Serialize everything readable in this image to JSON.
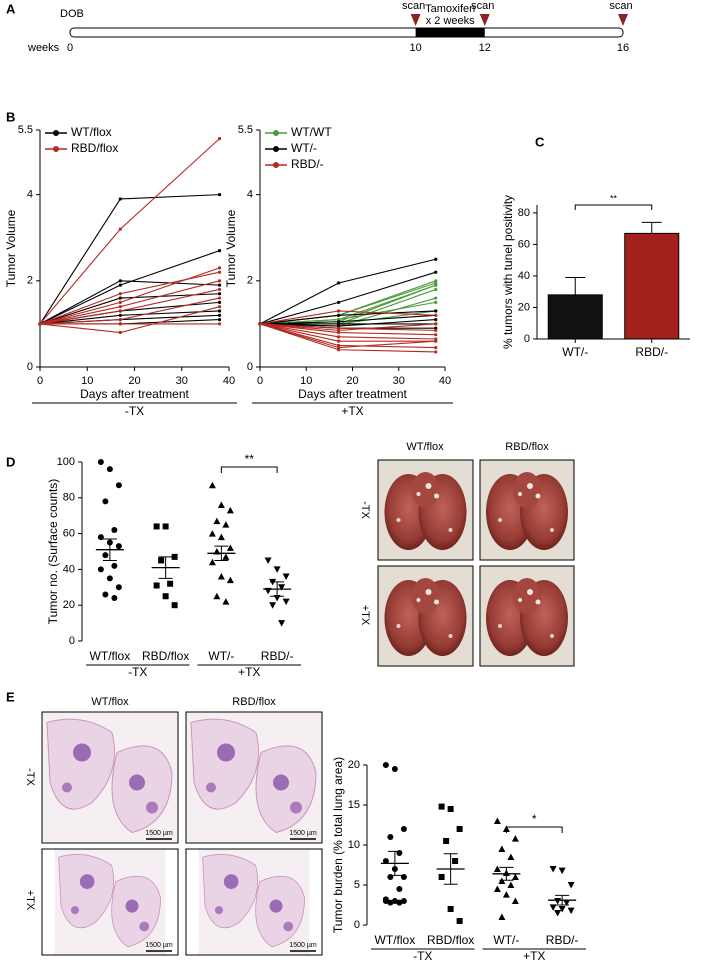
{
  "panel_labels": [
    "A",
    "B",
    "C",
    "D",
    "E"
  ],
  "timeline": {
    "start_label": "DOB",
    "axis_label": "weeks",
    "xlim": [
      0,
      16
    ],
    "xticks": [
      0,
      10,
      12,
      16
    ],
    "scans": [
      {
        "week": 10,
        "label": "scan"
      },
      {
        "week": 12,
        "label": "scan"
      },
      {
        "week": 16,
        "label": "scan"
      }
    ],
    "treatment": {
      "label": "Tamoxifen",
      "sublabel": "x 2 weeks",
      "weeks": [
        10,
        12
      ]
    }
  },
  "chart_data": [
    {
      "type": "line",
      "ylabel": "Tumor Volume",
      "xlabel": "Days after treatment",
      "group_label": "-TX",
      "x": [
        0,
        17,
        38
      ],
      "xlim": [
        0,
        40
      ],
      "xticks": [
        0,
        10,
        20,
        30,
        40
      ],
      "ylim": [
        0,
        5.5
      ],
      "yticks": [
        0,
        2,
        4,
        5.5
      ],
      "series": [
        {
          "name": "WT/flox",
          "color": "#000000",
          "values": [
            [
              1,
              3.9,
              4.0
            ],
            [
              1,
              2.0,
              1.9
            ],
            [
              1,
              1.9,
              2.7
            ],
            [
              1,
              1.6,
              1.7
            ],
            [
              1,
              1.3,
              1.5
            ],
            [
              1,
              1.2,
              1.3
            ],
            [
              1,
              1.1,
              1.2
            ],
            [
              1,
              1.0,
              1.1
            ]
          ]
        },
        {
          "name": "RBD/flox",
          "color": "#b52a22",
          "values": [
            [
              1,
              3.2,
              5.3
            ],
            [
              1,
              1.5,
              2.3
            ],
            [
              1,
              1.7,
              2.2
            ],
            [
              1,
              1.4,
              2.0
            ],
            [
              1,
              1.1,
              1.6
            ],
            [
              1,
              0.8,
              1.4
            ],
            [
              1,
              1.0,
              1.0
            ],
            [
              1,
              1.3,
              1.8
            ]
          ]
        }
      ]
    },
    {
      "type": "line",
      "ylabel": "Tumor Volume",
      "xlabel": "Days after treatment",
      "group_label": "+TX",
      "x": [
        0,
        17,
        38
      ],
      "xlim": [
        0,
        40
      ],
      "xticks": [
        0,
        10,
        20,
        30,
        40
      ],
      "ylim": [
        0,
        5.5
      ],
      "yticks": [
        0,
        2,
        4,
        5.5
      ],
      "series": [
        {
          "name": "WT/WT",
          "color": "#4f9a3c",
          "values": [
            [
              1,
              1.2,
              2.0
            ],
            [
              1,
              1.1,
              1.9
            ],
            [
              1,
              1.0,
              1.8
            ],
            [
              1,
              1.2,
              1.95
            ],
            [
              1,
              1.1,
              1.5
            ],
            [
              1,
              1.0,
              1.3
            ],
            [
              1,
              0.95,
              1.6
            ],
            [
              1,
              1.05,
              1.9
            ]
          ]
        },
        {
          "name": "WT/-",
          "color": "#000000",
          "values": [
            [
              1,
              1.95,
              2.5
            ],
            [
              1,
              1.5,
              2.2
            ],
            [
              1,
              1.2,
              1.3
            ],
            [
              1,
              1.05,
              1.2
            ],
            [
              1,
              1.0,
              1.0
            ],
            [
              1,
              0.95,
              1.1
            ],
            [
              1,
              0.9,
              0.9
            ]
          ]
        },
        {
          "name": "RBD/-",
          "color": "#b52a22",
          "values": [
            [
              1,
              1.3,
              1.2
            ],
            [
              1,
              0.9,
              0.85
            ],
            [
              1,
              0.8,
              0.75
            ],
            [
              1,
              0.7,
              0.65
            ],
            [
              1,
              0.6,
              0.6
            ],
            [
              1,
              0.5,
              0.45
            ],
            [
              1,
              0.45,
              0.6
            ],
            [
              1,
              0.4,
              0.35
            ],
            [
              1,
              0.85,
              1.0
            ]
          ]
        }
      ]
    },
    {
      "type": "bar",
      "ylabel": "% tumors with tunel positivity",
      "categories": [
        "WT/-",
        "RBD/-"
      ],
      "values": [
        28,
        67
      ],
      "errors": [
        11,
        7
      ],
      "colors": [
        "#111111",
        "#a3201b"
      ],
      "ylim": [
        0,
        85
      ],
      "yticks": [
        0,
        20,
        40,
        60,
        80
      ],
      "significance": "**"
    },
    {
      "type": "dotplot",
      "ylabel": "Tumor no. (Surface counts)",
      "ylim": [
        0,
        100
      ],
      "yticks": [
        0,
        20,
        40,
        60,
        80,
        100
      ],
      "group_labels": [
        "-TX",
        "+TX"
      ],
      "significance": "**",
      "series": [
        {
          "name": "WT/flox",
          "marker": "circle",
          "mean": 51,
          "sem": 6,
          "values": [
            100,
            96,
            87,
            78,
            62,
            58,
            55,
            53,
            48,
            42,
            40,
            35,
            30,
            26,
            24
          ]
        },
        {
          "name": "RBD/flox",
          "marker": "square",
          "mean": 41,
          "sem": 6,
          "values": [
            64,
            64,
            47,
            45,
            32,
            31,
            25,
            20
          ]
        },
        {
          "name": "WT/-",
          "marker": "triangle-up",
          "mean": 49,
          "sem": 4,
          "values": [
            87,
            76,
            73,
            67,
            65,
            60,
            58,
            52,
            50,
            47,
            44,
            36,
            34,
            25,
            22
          ]
        },
        {
          "name": "RBD/-",
          "marker": "triangle-down",
          "mean": 29,
          "sem": 4,
          "values": [
            45,
            40,
            36,
            33,
            30,
            28,
            24,
            22,
            20,
            10
          ]
        }
      ]
    },
    {
      "type": "dotplot",
      "ylabel": "Tumor burden (% total lung area)",
      "ylim": [
        0,
        20
      ],
      "yticks": [
        0,
        5,
        10,
        15,
        20
      ],
      "group_labels": [
        "-TX",
        "+TX"
      ],
      "significance": "*",
      "series": [
        {
          "name": "WT/flox",
          "marker": "circle",
          "mean": 7.7,
          "sem": 1.5,
          "values": [
            20,
            19.5,
            12,
            11,
            9,
            8,
            7,
            6,
            6,
            4.5,
            3.2,
            3,
            3,
            2.8,
            2.8,
            3
          ]
        },
        {
          "name": "RBD/flox",
          "marker": "square",
          "mean": 7.0,
          "sem": 1.9,
          "values": [
            14.8,
            14.5,
            12,
            10.5,
            8,
            6,
            2,
            0.5
          ]
        },
        {
          "name": "WT/-",
          "marker": "triangle-up",
          "mean": 6.4,
          "sem": 0.8,
          "values": [
            13,
            12,
            10.8,
            9.5,
            8.5,
            7,
            6.5,
            6,
            5.5,
            5,
            4.5,
            3.8,
            3,
            1
          ]
        },
        {
          "name": "RBD/-",
          "marker": "triangle-down",
          "mean": 3.1,
          "sem": 0.6,
          "values": [
            7,
            6.8,
            5,
            3,
            2.8,
            2.2,
            2,
            1.8,
            1.5
          ]
        }
      ]
    }
  ],
  "gross_photos": {
    "columns": [
      "WT/flox",
      "RBD/flox"
    ],
    "rows": [
      "-TX",
      "+TX"
    ]
  },
  "histology": {
    "columns": [
      "WT/flox",
      "RBD/flox"
    ],
    "rows": [
      "-TX",
      "+TX"
    ],
    "scale_bars": [
      "1500 µm",
      "1500 µm",
      "1500 µm",
      "1500 µm"
    ]
  }
}
